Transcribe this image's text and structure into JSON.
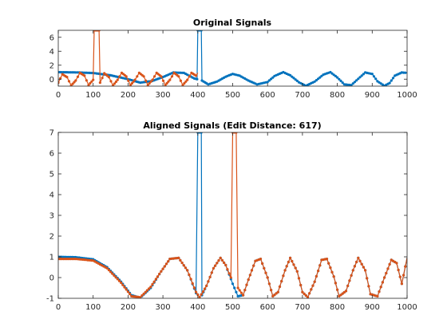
{
  "figure": {
    "background": "#ffffff",
    "axis_color": "#262626"
  },
  "chart_data": [
    {
      "type": "line",
      "title": "Original Signals",
      "xlabel": "",
      "ylabel": "",
      "xlim": [
        0,
        1000
      ],
      "ylim": [
        -1,
        7
      ],
      "xticks": [
        0,
        100,
        200,
        300,
        400,
        500,
        600,
        700,
        800,
        900,
        1000
      ],
      "yticks": [
        0,
        2,
        4,
        6
      ],
      "grid": false,
      "legend": "none",
      "series": [
        {
          "color": "#0072BD",
          "marker": "dot",
          "points": [
            [
              0,
              1
            ],
            [
              50,
              0.97
            ],
            [
              100,
              0.88
            ],
            [
              150,
              0.55
            ],
            [
              200,
              0.0
            ],
            [
              235,
              -0.5
            ],
            [
              270,
              -0.25
            ],
            [
              300,
              0.3
            ],
            [
              330,
              0.95
            ],
            [
              360,
              0.9
            ],
            [
              390,
              0.1
            ],
            [
              398,
              0.0
            ],
            [
              400,
              7
            ],
            [
              410,
              7
            ],
            [
              412,
              -0.2
            ],
            [
              430,
              -0.75
            ],
            [
              455,
              -0.35
            ],
            [
              480,
              0.35
            ],
            [
              500,
              0.75
            ],
            [
              520,
              0.5
            ],
            [
              545,
              -0.2
            ],
            [
              570,
              -0.75
            ],
            [
              600,
              -0.4
            ],
            [
              620,
              0.45
            ],
            [
              645,
              1.0
            ],
            [
              665,
              0.55
            ],
            [
              690,
              -0.45
            ],
            [
              710,
              -0.95
            ],
            [
              735,
              -0.35
            ],
            [
              760,
              0.65
            ],
            [
              780,
              1.0
            ],
            [
              800,
              0.25
            ],
            [
              820,
              -0.75
            ],
            [
              840,
              -0.85
            ],
            [
              860,
              0.05
            ],
            [
              880,
              0.95
            ],
            [
              900,
              0.75
            ],
            [
              915,
              -0.3
            ],
            [
              935,
              -0.95
            ],
            [
              950,
              -0.55
            ],
            [
              965,
              0.5
            ],
            [
              985,
              0.95
            ],
            [
              1000,
              0.9
            ]
          ]
        },
        {
          "color": "#D95319",
          "marker": "dot",
          "points": [
            [
              0,
              -0.5
            ],
            [
              12,
              0.7
            ],
            [
              25,
              0.3
            ],
            [
              37,
              -0.9
            ],
            [
              50,
              -0.2
            ],
            [
              62,
              0.9
            ],
            [
              75,
              0.5
            ],
            [
              87,
              -0.85
            ],
            [
              100,
              -0.1
            ],
            [
              103,
              7
            ],
            [
              117,
              7
            ],
            [
              120,
              -0.5
            ],
            [
              132,
              0.85
            ],
            [
              145,
              0.3
            ],
            [
              157,
              -0.9
            ],
            [
              170,
              -0.1
            ],
            [
              182,
              0.9
            ],
            [
              195,
              0.4
            ],
            [
              207,
              -0.85
            ],
            [
              220,
              -0.1
            ],
            [
              232,
              0.9
            ],
            [
              245,
              0.4
            ],
            [
              257,
              -0.85
            ],
            [
              270,
              -0.1
            ],
            [
              282,
              0.9
            ],
            [
              295,
              0.4
            ],
            [
              307,
              -0.85
            ],
            [
              320,
              -0.1
            ],
            [
              332,
              0.9
            ],
            [
              345,
              0.4
            ],
            [
              357,
              -0.85
            ],
            [
              370,
              -0.1
            ],
            [
              382,
              0.9
            ],
            [
              395,
              0.5
            ],
            [
              400,
              0.9
            ]
          ]
        }
      ]
    },
    {
      "type": "line",
      "title": "Aligned Signals (Edit Distance: 617)",
      "xlabel": "",
      "ylabel": "",
      "xlim": [
        0,
        1000
      ],
      "ylim": [
        -1,
        7
      ],
      "xticks": [
        0,
        100,
        200,
        300,
        400,
        500,
        600,
        700,
        800,
        900,
        1000
      ],
      "yticks": [
        -1,
        0,
        1,
        2,
        3,
        4,
        5,
        6,
        7
      ],
      "grid": false,
      "legend": "none",
      "series": [
        {
          "color": "#0072BD",
          "marker": "dot",
          "points": [
            [
              0,
              1
            ],
            [
              50,
              0.98
            ],
            [
              100,
              0.88
            ],
            [
              140,
              0.5
            ],
            [
              180,
              -0.2
            ],
            [
              210,
              -0.85
            ],
            [
              235,
              -0.97
            ],
            [
              265,
              -0.5
            ],
            [
              295,
              0.3
            ],
            [
              320,
              0.9
            ],
            [
              345,
              0.95
            ],
            [
              370,
              0.35
            ],
            [
              395,
              -0.75
            ],
            [
              400,
              7
            ],
            [
              410,
              7
            ],
            [
              412,
              -0.85
            ],
            [
              425,
              -0.4
            ],
            [
              445,
              0.45
            ],
            [
              465,
              0.95
            ],
            [
              480,
              0.6
            ],
            [
              500,
              -0.3
            ],
            [
              515,
              -0.9
            ],
            [
              530,
              -0.85
            ],
            [
              545,
              -0.1
            ],
            [
              565,
              0.8
            ],
            [
              580,
              0.9
            ],
            [
              600,
              0.0
            ],
            [
              615,
              -0.9
            ],
            [
              630,
              -0.7
            ],
            [
              650,
              0.35
            ],
            [
              665,
              0.95
            ],
            [
              685,
              0.3
            ],
            [
              700,
              -0.7
            ],
            [
              715,
              -0.95
            ],
            [
              735,
              -0.2
            ],
            [
              755,
              0.85
            ],
            [
              770,
              0.9
            ],
            [
              790,
              0.05
            ],
            [
              805,
              -0.9
            ],
            [
              825,
              -0.65
            ],
            [
              845,
              0.35
            ],
            [
              860,
              0.95
            ],
            [
              880,
              0.35
            ],
            [
              895,
              -0.8
            ],
            [
              915,
              -0.9
            ],
            [
              935,
              0.0
            ],
            [
              955,
              0.85
            ],
            [
              970,
              0.7
            ],
            [
              985,
              -0.3
            ],
            [
              1000,
              0.95
            ]
          ]
        },
        {
          "color": "#D95319",
          "marker": "dot",
          "points": [
            [
              0,
              0.9
            ],
            [
              50,
              0.9
            ],
            [
              100,
              0.82
            ],
            [
              140,
              0.45
            ],
            [
              180,
              -0.25
            ],
            [
              210,
              -0.9
            ],
            [
              235,
              -0.95
            ],
            [
              265,
              -0.45
            ],
            [
              295,
              0.3
            ],
            [
              320,
              0.9
            ],
            [
              345,
              0.95
            ],
            [
              370,
              0.35
            ],
            [
              395,
              -0.7
            ],
            [
              405,
              -0.95
            ],
            [
              425,
              -0.4
            ],
            [
              445,
              0.45
            ],
            [
              465,
              0.95
            ],
            [
              480,
              0.6
            ],
            [
              495,
              0.0
            ],
            [
              500,
              7
            ],
            [
              510,
              7
            ],
            [
              515,
              -0.5
            ],
            [
              530,
              -0.85
            ],
            [
              545,
              -0.1
            ],
            [
              565,
              0.8
            ],
            [
              580,
              0.9
            ],
            [
              600,
              0.0
            ],
            [
              615,
              -0.9
            ],
            [
              630,
              -0.7
            ],
            [
              650,
              0.35
            ],
            [
              665,
              0.95
            ],
            [
              685,
              0.3
            ],
            [
              700,
              -0.7
            ],
            [
              715,
              -0.95
            ],
            [
              735,
              -0.2
            ],
            [
              755,
              0.85
            ],
            [
              770,
              0.9
            ],
            [
              790,
              0.05
            ],
            [
              805,
              -0.9
            ],
            [
              825,
              -0.65
            ],
            [
              845,
              0.35
            ],
            [
              860,
              0.95
            ],
            [
              880,
              0.35
            ],
            [
              895,
              -0.8
            ],
            [
              915,
              -0.9
            ],
            [
              935,
              0.0
            ],
            [
              955,
              0.85
            ],
            [
              970,
              0.7
            ],
            [
              985,
              -0.3
            ],
            [
              1000,
              0.95
            ]
          ]
        }
      ]
    }
  ]
}
